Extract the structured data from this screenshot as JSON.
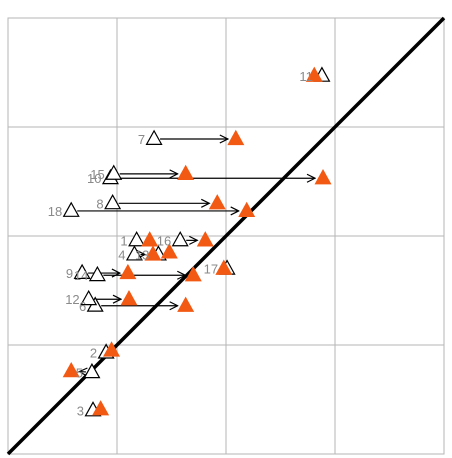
{
  "chart_data": {
    "type": "scatter",
    "title": "",
    "xlabel": "",
    "ylabel": "",
    "xlim": [
      0,
      4
    ],
    "ylim": [
      0,
      4
    ],
    "grid": true,
    "gridlines": [
      1,
      2,
      3
    ],
    "reference_line": {
      "from": [
        0,
        0
      ],
      "to": [
        4,
        4
      ]
    },
    "colors": {
      "open_marker": "#000000",
      "filled_marker": "#f25a14",
      "arrow": "#000000",
      "grid": "#b5b5b5",
      "label": "#8a8a8a"
    },
    "points": [
      {
        "label": "1",
        "x0": 1.18,
        "y0": 1.96,
        "x1": 1.3,
        "y1": 1.96
      },
      {
        "label": "2",
        "x0": 0.9,
        "y0": 0.93,
        "x1": 0.95,
        "y1": 0.95
      },
      {
        "label": "3",
        "x0": 0.78,
        "y0": 0.4,
        "x1": 0.85,
        "y1": 0.41
      },
      {
        "label": "4",
        "x0": 1.16,
        "y0": 1.83,
        "x1": 1.33,
        "y1": 1.83
      },
      {
        "label": "5",
        "x0": 0.77,
        "y0": 0.75,
        "x1": 0.58,
        "y1": 0.76
      },
      {
        "label": "6",
        "x0": 0.8,
        "y0": 1.36,
        "x1": 1.63,
        "y1": 1.36
      },
      {
        "label": "7",
        "x0": 1.34,
        "y0": 2.89,
        "x1": 2.09,
        "y1": 2.89
      },
      {
        "label": "8",
        "x0": 0.96,
        "y0": 2.3,
        "x1": 1.92,
        "y1": 2.3
      },
      {
        "label": "9",
        "x0": 0.68,
        "y0": 1.66,
        "x1": 1.1,
        "y1": 1.66
      },
      {
        "label": "10",
        "x0": 0.94,
        "y0": 2.53,
        "x1": 2.89,
        "y1": 2.53
      },
      {
        "label": "11",
        "x0": 2.88,
        "y0": 3.47,
        "x1": 2.81,
        "y1": 3.47
      },
      {
        "label": "12",
        "x0": 0.74,
        "y0": 1.42,
        "x1": 1.11,
        "y1": 1.42
      },
      {
        "label": "13",
        "x0": 1.38,
        "y0": 1.83,
        "x1": 1.48,
        "y1": 1.85
      },
      {
        "label": "14",
        "x0": 0.82,
        "y0": 1.64,
        "x1": 1.7,
        "y1": 1.64
      },
      {
        "label": "15",
        "x0": 0.97,
        "y0": 2.57,
        "x1": 1.63,
        "y1": 2.57
      },
      {
        "label": "16",
        "x0": 1.58,
        "y0": 1.96,
        "x1": 1.81,
        "y1": 1.96
      },
      {
        "label": "17",
        "x0": 2.01,
        "y0": 1.7,
        "x1": 1.98,
        "y1": 1.7
      },
      {
        "label": "18",
        "x0": 0.58,
        "y0": 2.23,
        "x1": 2.19,
        "y1": 2.23
      }
    ]
  }
}
